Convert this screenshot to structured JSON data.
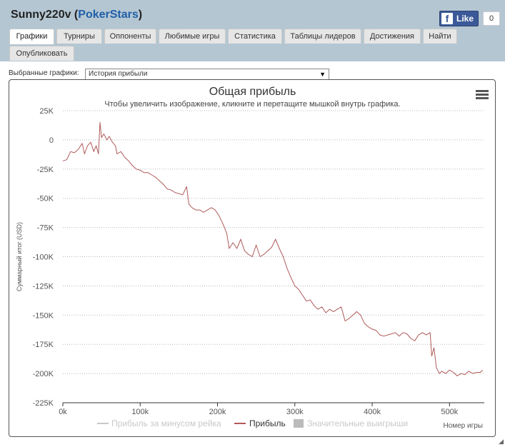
{
  "header": {
    "player_name": "Sunny220v",
    "site_name": "PokerStars",
    "like_label": "Like",
    "like_count": "0"
  },
  "tabs": [
    {
      "label": "Графики",
      "active": true
    },
    {
      "label": "Турниры"
    },
    {
      "label": "Оппоненты"
    },
    {
      "label": "Любимые игры"
    },
    {
      "label": "Статистика"
    },
    {
      "label": "Таблицы лидеров"
    },
    {
      "label": "Достижения"
    },
    {
      "label": "Найти"
    },
    {
      "label": "Опубликовать"
    }
  ],
  "selector": {
    "label": "Выбранные графики:",
    "value": "История прибыли"
  },
  "colors": {
    "header_band": "#b4c6d2",
    "profit_line": "#b05a5a",
    "no_rake_line": "#c8c8c8",
    "big_wins": "#bbbbbb",
    "link_blue": "#1f5fa8"
  },
  "chart_data": {
    "type": "line",
    "title": "Общая прибыль",
    "subtitle": "Чтобы увеличить изображение, кликните и перетащите мышкой внутрь графика.",
    "ylabel": "Суммарный итог (USD)",
    "xlabel": "Номер игры",
    "xlim": [
      0,
      545000
    ],
    "ylim": [
      -225000,
      25000
    ],
    "x_ticks": [
      0,
      100000,
      200000,
      300000,
      400000,
      500000
    ],
    "x_tick_labels": [
      "0k",
      "100k",
      "200k",
      "300k",
      "400k",
      "500k"
    ],
    "y_ticks": [
      25000,
      0,
      -25000,
      -50000,
      -75000,
      -100000,
      -125000,
      -150000,
      -175000,
      -200000,
      -225000
    ],
    "y_tick_labels": [
      "25K",
      "0",
      "-25K",
      "-50K",
      "-75K",
      "-100K",
      "-125K",
      "-150K",
      "-175K",
      "-200K",
      "-225K"
    ],
    "grid": "horizontal dotted",
    "legend_position": "bottom-center",
    "legend": [
      {
        "name": "Прибыль за минусом рейка",
        "kind": "line",
        "color": "#c8c8c8",
        "visible": false
      },
      {
        "name": "Прибыль",
        "kind": "line",
        "color": "#b05a5a",
        "visible": true
      },
      {
        "name": "Значительные выигрыши",
        "kind": "box",
        "color": "#bbbbbb",
        "visible": false
      }
    ],
    "series": [
      {
        "name": "Прибыль",
        "points": [
          [
            0,
            -18000
          ],
          [
            5000,
            -17000
          ],
          [
            10000,
            -10000
          ],
          [
            15000,
            -11000
          ],
          [
            20000,
            -8000
          ],
          [
            25000,
            -3000
          ],
          [
            28000,
            -12000
          ],
          [
            32000,
            -5000
          ],
          [
            36000,
            -2000
          ],
          [
            40000,
            -10000
          ],
          [
            43000,
            -5000
          ],
          [
            46000,
            -12000
          ],
          [
            48000,
            15000
          ],
          [
            50000,
            2000
          ],
          [
            53000,
            5000
          ],
          [
            57000,
            0
          ],
          [
            60000,
            3000
          ],
          [
            64000,
            -2000
          ],
          [
            68000,
            -5000
          ],
          [
            70000,
            -12000
          ],
          [
            75000,
            -10000
          ],
          [
            80000,
            -15000
          ],
          [
            85000,
            -18000
          ],
          [
            90000,
            -22000
          ],
          [
            95000,
            -25000
          ],
          [
            100000,
            -26000
          ],
          [
            105000,
            -28000
          ],
          [
            110000,
            -28000
          ],
          [
            115000,
            -30000
          ],
          [
            120000,
            -32000
          ],
          [
            125000,
            -35000
          ],
          [
            130000,
            -38000
          ],
          [
            135000,
            -42000
          ],
          [
            140000,
            -43000
          ],
          [
            145000,
            -45000
          ],
          [
            150000,
            -46000
          ],
          [
            155000,
            -47000
          ],
          [
            160000,
            -40000
          ],
          [
            163000,
            -55000
          ],
          [
            167000,
            -58000
          ],
          [
            172000,
            -60000
          ],
          [
            177000,
            -60000
          ],
          [
            182000,
            -62000
          ],
          [
            187000,
            -60000
          ],
          [
            192000,
            -58000
          ],
          [
            197000,
            -60000
          ],
          [
            202000,
            -65000
          ],
          [
            207000,
            -72000
          ],
          [
            212000,
            -80000
          ],
          [
            215000,
            -93000
          ],
          [
            220000,
            -88000
          ],
          [
            225000,
            -93000
          ],
          [
            230000,
            -85000
          ],
          [
            235000,
            -95000
          ],
          [
            240000,
            -98000
          ],
          [
            245000,
            -100000
          ],
          [
            250000,
            -90000
          ],
          [
            255000,
            -100000
          ],
          [
            260000,
            -98000
          ],
          [
            265000,
            -95000
          ],
          [
            270000,
            -92000
          ],
          [
            275000,
            -85000
          ],
          [
            280000,
            -93000
          ],
          [
            285000,
            -100000
          ],
          [
            290000,
            -110000
          ],
          [
            295000,
            -118000
          ],
          [
            300000,
            -125000
          ],
          [
            305000,
            -128000
          ],
          [
            310000,
            -133000
          ],
          [
            315000,
            -138000
          ],
          [
            320000,
            -137000
          ],
          [
            325000,
            -142000
          ],
          [
            330000,
            -145000
          ],
          [
            335000,
            -143000
          ],
          [
            340000,
            -148000
          ],
          [
            345000,
            -145000
          ],
          [
            350000,
            -147000
          ],
          [
            355000,
            -145000
          ],
          [
            360000,
            -143000
          ],
          [
            365000,
            -155000
          ],
          [
            370000,
            -153000
          ],
          [
            375000,
            -150000
          ],
          [
            380000,
            -147000
          ],
          [
            385000,
            -150000
          ],
          [
            390000,
            -157000
          ],
          [
            395000,
            -160000
          ],
          [
            400000,
            -162000
          ],
          [
            405000,
            -163000
          ],
          [
            410000,
            -167000
          ],
          [
            415000,
            -168000
          ],
          [
            420000,
            -167000
          ],
          [
            425000,
            -166000
          ],
          [
            430000,
            -165000
          ],
          [
            435000,
            -168000
          ],
          [
            440000,
            -165000
          ],
          [
            445000,
            -166000
          ],
          [
            450000,
            -170000
          ],
          [
            455000,
            -172000
          ],
          [
            460000,
            -167000
          ],
          [
            465000,
            -165000
          ],
          [
            470000,
            -167000
          ],
          [
            475000,
            -165000
          ],
          [
            477000,
            -185000
          ],
          [
            480000,
            -178000
          ],
          [
            483000,
            -195000
          ],
          [
            487000,
            -200000
          ],
          [
            490000,
            -198000
          ],
          [
            495000,
            -200000
          ],
          [
            500000,
            -197000
          ],
          [
            505000,
            -199000
          ],
          [
            510000,
            -202000
          ],
          [
            515000,
            -200000
          ],
          [
            520000,
            -201000
          ],
          [
            525000,
            -198000
          ],
          [
            530000,
            -200000
          ],
          [
            535000,
            -199000
          ],
          [
            540000,
            -199000
          ],
          [
            543000,
            -197000
          ]
        ]
      }
    ]
  }
}
